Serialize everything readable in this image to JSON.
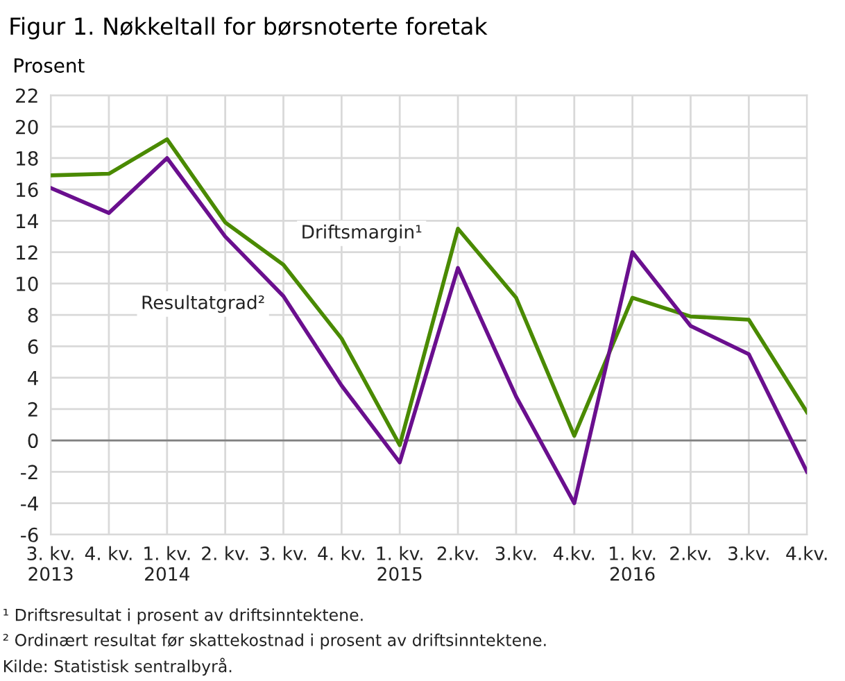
{
  "chart_data": {
    "type": "line",
    "title": "Figur 1. Nøkkeltall for børsnoterte foretak",
    "ylabel": "Prosent",
    "categories": [
      "3. kv.\n2013",
      "4. kv.",
      "1. kv.\n2014",
      "2. kv.",
      "3. kv.",
      "4. kv.",
      "1. kv.\n2015",
      "2.kv.",
      "3.kv.",
      "4.kv.",
      "1. kv.\n2016",
      "2.kv.",
      "3.kv.",
      "4.kv."
    ],
    "series": [
      {
        "name": "Driftsmargin¹",
        "color": "#4a8a00",
        "values": [
          16.9,
          17.0,
          19.2,
          13.9,
          11.2,
          6.5,
          -0.3,
          13.5,
          9.1,
          0.3,
          9.1,
          7.9,
          7.7,
          1.8
        ]
      },
      {
        "name": "Resultatgrad²",
        "color": "#6a0f8e",
        "values": [
          16.1,
          14.5,
          18.0,
          13.0,
          9.2,
          3.5,
          -1.4,
          11.0,
          2.8,
          -4.0,
          12.0,
          7.3,
          5.5,
          -2.0
        ]
      }
    ],
    "ylim": [
      -6,
      22
    ],
    "yticks": [
      -6,
      -4,
      -2,
      0,
      2,
      4,
      6,
      8,
      10,
      12,
      14,
      16,
      18,
      20,
      22
    ],
    "grid": true,
    "legend": false,
    "marker": "none",
    "line_style": "solid",
    "ref_lines": [
      {
        "axis": "y",
        "value": 0,
        "color": "#808080"
      }
    ],
    "annotations": [
      "¹ Driftsresultat i prosent av driftsinntektene.",
      "² Ordinært resultat før skattekostnad i prosent av driftsinntektene.",
      "Kilde: Statistisk sentralbyrå."
    ]
  }
}
